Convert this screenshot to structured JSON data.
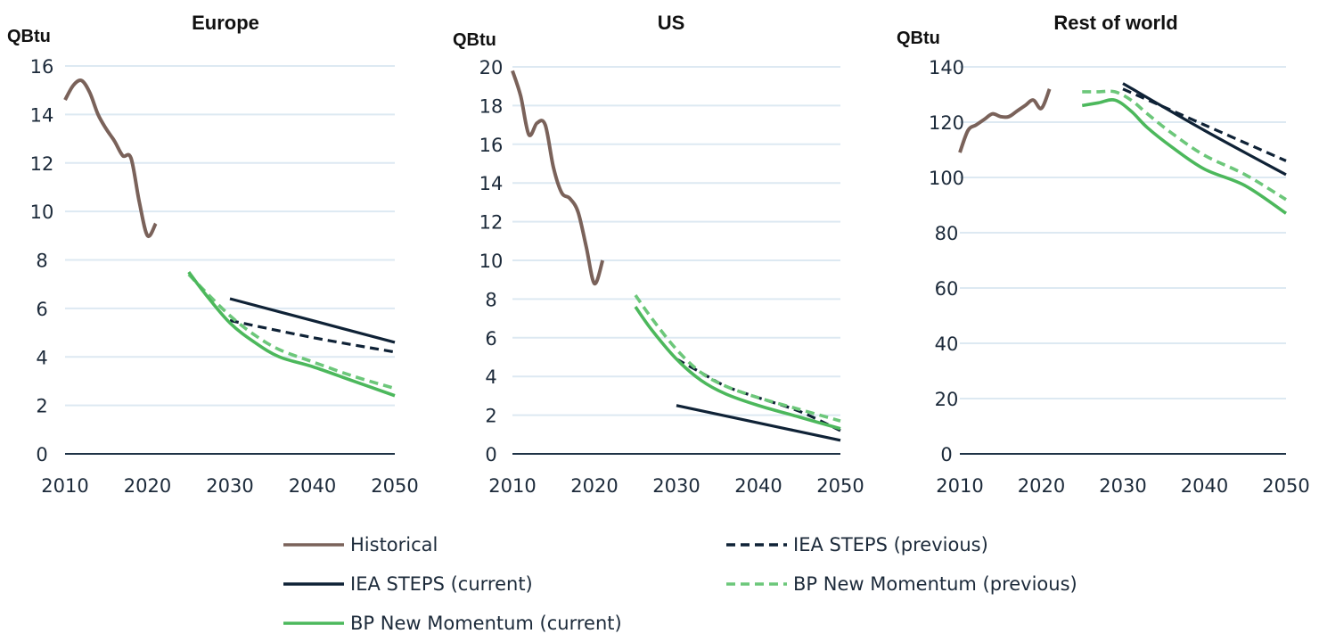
{
  "chart_data": [
    {
      "type": "line",
      "title": "Europe",
      "ylabel": "QBtu",
      "xlim": [
        2010,
        2050
      ],
      "ylim": [
        0,
        16
      ],
      "xticks": [
        2010,
        2020,
        2030,
        2040,
        2050
      ],
      "yticks": [
        0,
        2,
        4,
        6,
        8,
        10,
        12,
        14,
        16
      ],
      "grid": true,
      "series": [
        {
          "key": "historical",
          "x": [
            2010,
            2011,
            2012,
            2013,
            2014,
            2015,
            2016,
            2017,
            2018,
            2019,
            2020,
            2021
          ],
          "y": [
            14.6,
            15.2,
            15.4,
            14.9,
            14.0,
            13.4,
            12.9,
            12.3,
            12.2,
            10.4,
            9.0,
            9.5
          ]
        },
        {
          "key": "iea_current",
          "x": [
            2030,
            2040,
            2050
          ],
          "y": [
            6.4,
            5.5,
            4.6
          ]
        },
        {
          "key": "iea_previous",
          "x": [
            2030,
            2040,
            2050
          ],
          "y": [
            5.5,
            4.8,
            4.2
          ]
        },
        {
          "key": "bp_previous",
          "x": [
            2025,
            2027,
            2030,
            2033,
            2036,
            2040,
            2045,
            2050
          ],
          "y": [
            7.4,
            6.7,
            5.7,
            4.9,
            4.3,
            3.8,
            3.2,
            2.7
          ]
        },
        {
          "key": "bp_current",
          "x": [
            2025,
            2027,
            2030,
            2033,
            2036,
            2040,
            2045,
            2050
          ],
          "y": [
            7.5,
            6.6,
            5.4,
            4.6,
            4.0,
            3.6,
            3.0,
            2.4
          ]
        }
      ]
    },
    {
      "type": "line",
      "title": "US",
      "ylabel": "QBtu",
      "xlim": [
        2010,
        2050
      ],
      "ylim": [
        0,
        20
      ],
      "xticks": [
        2010,
        2020,
        2030,
        2040,
        2050
      ],
      "yticks": [
        0,
        2,
        4,
        6,
        8,
        10,
        12,
        14,
        16,
        18,
        20
      ],
      "grid": true,
      "series": [
        {
          "key": "historical",
          "x": [
            2010,
            2011,
            2012,
            2013,
            2014,
            2015,
            2016,
            2017,
            2018,
            2019,
            2020,
            2021
          ],
          "y": [
            19.8,
            18.5,
            16.5,
            17.1,
            17.0,
            14.8,
            13.5,
            13.2,
            12.5,
            10.7,
            8.8,
            10.0
          ]
        },
        {
          "key": "iea_current",
          "x": [
            2030,
            2040,
            2050
          ],
          "y": [
            2.5,
            1.6,
            0.7
          ]
        },
        {
          "key": "iea_previous",
          "x": [
            2030,
            2033,
            2036,
            2040,
            2045,
            2050
          ],
          "y": [
            4.9,
            4.2,
            3.5,
            2.9,
            2.2,
            1.2
          ]
        },
        {
          "key": "bp_previous",
          "x": [
            2025,
            2027,
            2030,
            2033,
            2036,
            2040,
            2045,
            2050
          ],
          "y": [
            8.2,
            7.0,
            5.4,
            4.2,
            3.5,
            2.9,
            2.3,
            1.7
          ]
        },
        {
          "key": "bp_current",
          "x": [
            2025,
            2027,
            2030,
            2033,
            2036,
            2040,
            2045,
            2050
          ],
          "y": [
            7.6,
            6.4,
            4.9,
            3.8,
            3.1,
            2.5,
            1.9,
            1.3
          ]
        }
      ]
    },
    {
      "type": "line",
      "title": "Rest of world",
      "ylabel": "QBtu",
      "xlim": [
        2010,
        2050
      ],
      "ylim": [
        0,
        140
      ],
      "xticks": [
        2010,
        2020,
        2030,
        2040,
        2050
      ],
      "yticks": [
        0,
        20,
        40,
        60,
        80,
        100,
        120,
        140
      ],
      "grid": true,
      "series": [
        {
          "key": "historical",
          "x": [
            2010,
            2011,
            2012,
            2013,
            2014,
            2015,
            2016,
            2017,
            2018,
            2019,
            2020,
            2021
          ],
          "y": [
            109,
            117,
            119,
            121,
            123,
            122,
            122,
            124,
            126,
            128,
            125,
            132
          ]
        },
        {
          "key": "iea_current",
          "x": [
            2030,
            2040,
            2050
          ],
          "y": [
            134,
            117,
            101
          ]
        },
        {
          "key": "iea_previous",
          "x": [
            2030,
            2040,
            2050
          ],
          "y": [
            132,
            119,
            106
          ]
        },
        {
          "key": "bp_previous",
          "x": [
            2025,
            2027,
            2029,
            2031,
            2033,
            2036,
            2040,
            2045,
            2050
          ],
          "y": [
            131,
            131,
            131,
            128,
            123,
            116,
            108,
            101,
            92
          ]
        },
        {
          "key": "bp_current",
          "x": [
            2025,
            2027,
            2029,
            2031,
            2033,
            2036,
            2040,
            2045,
            2050
          ],
          "y": [
            126,
            127,
            128,
            124,
            118,
            111,
            103,
            97,
            87
          ]
        }
      ]
    }
  ],
  "legend": {
    "placement": "bottom",
    "items": [
      {
        "key": "historical",
        "label": "Historical",
        "color": "#7a625a",
        "dashed": false
      },
      {
        "key": "iea_previous",
        "label": "IEA STEPS (previous)",
        "color": "#0f2236",
        "dashed": true
      },
      {
        "key": "iea_current",
        "label": "IEA STEPS (current)",
        "color": "#0f2236",
        "dashed": false
      },
      {
        "key": "bp_previous",
        "label": "BP New Momentum (previous)",
        "color": "#6cc77a",
        "dashed": true
      },
      {
        "key": "bp_current",
        "label": "BP New Momentum (current)",
        "color": "#4cb85c",
        "dashed": false
      }
    ]
  }
}
